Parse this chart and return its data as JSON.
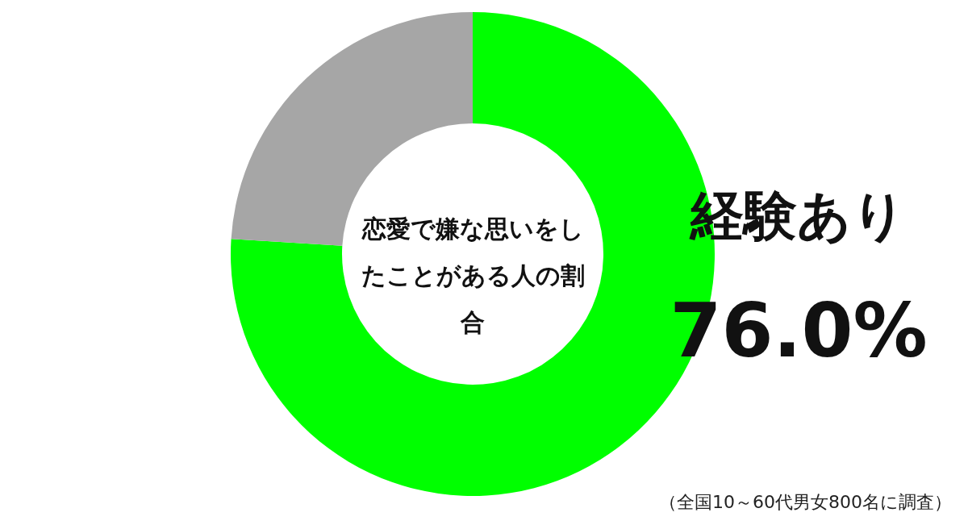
{
  "chart_data": {
    "type": "donut",
    "title": "恋愛で嫌な思いをしたことがある人の割合",
    "categories": [
      "経験あり",
      null
    ],
    "values": [
      76.0,
      24.0
    ],
    "colors": [
      "#00ff00",
      "#a6a6a6"
    ],
    "value_labels": [
      "76.0%",
      null
    ],
    "annotations": [
      "（全国10～60代男女800名に調査）"
    ]
  }
}
